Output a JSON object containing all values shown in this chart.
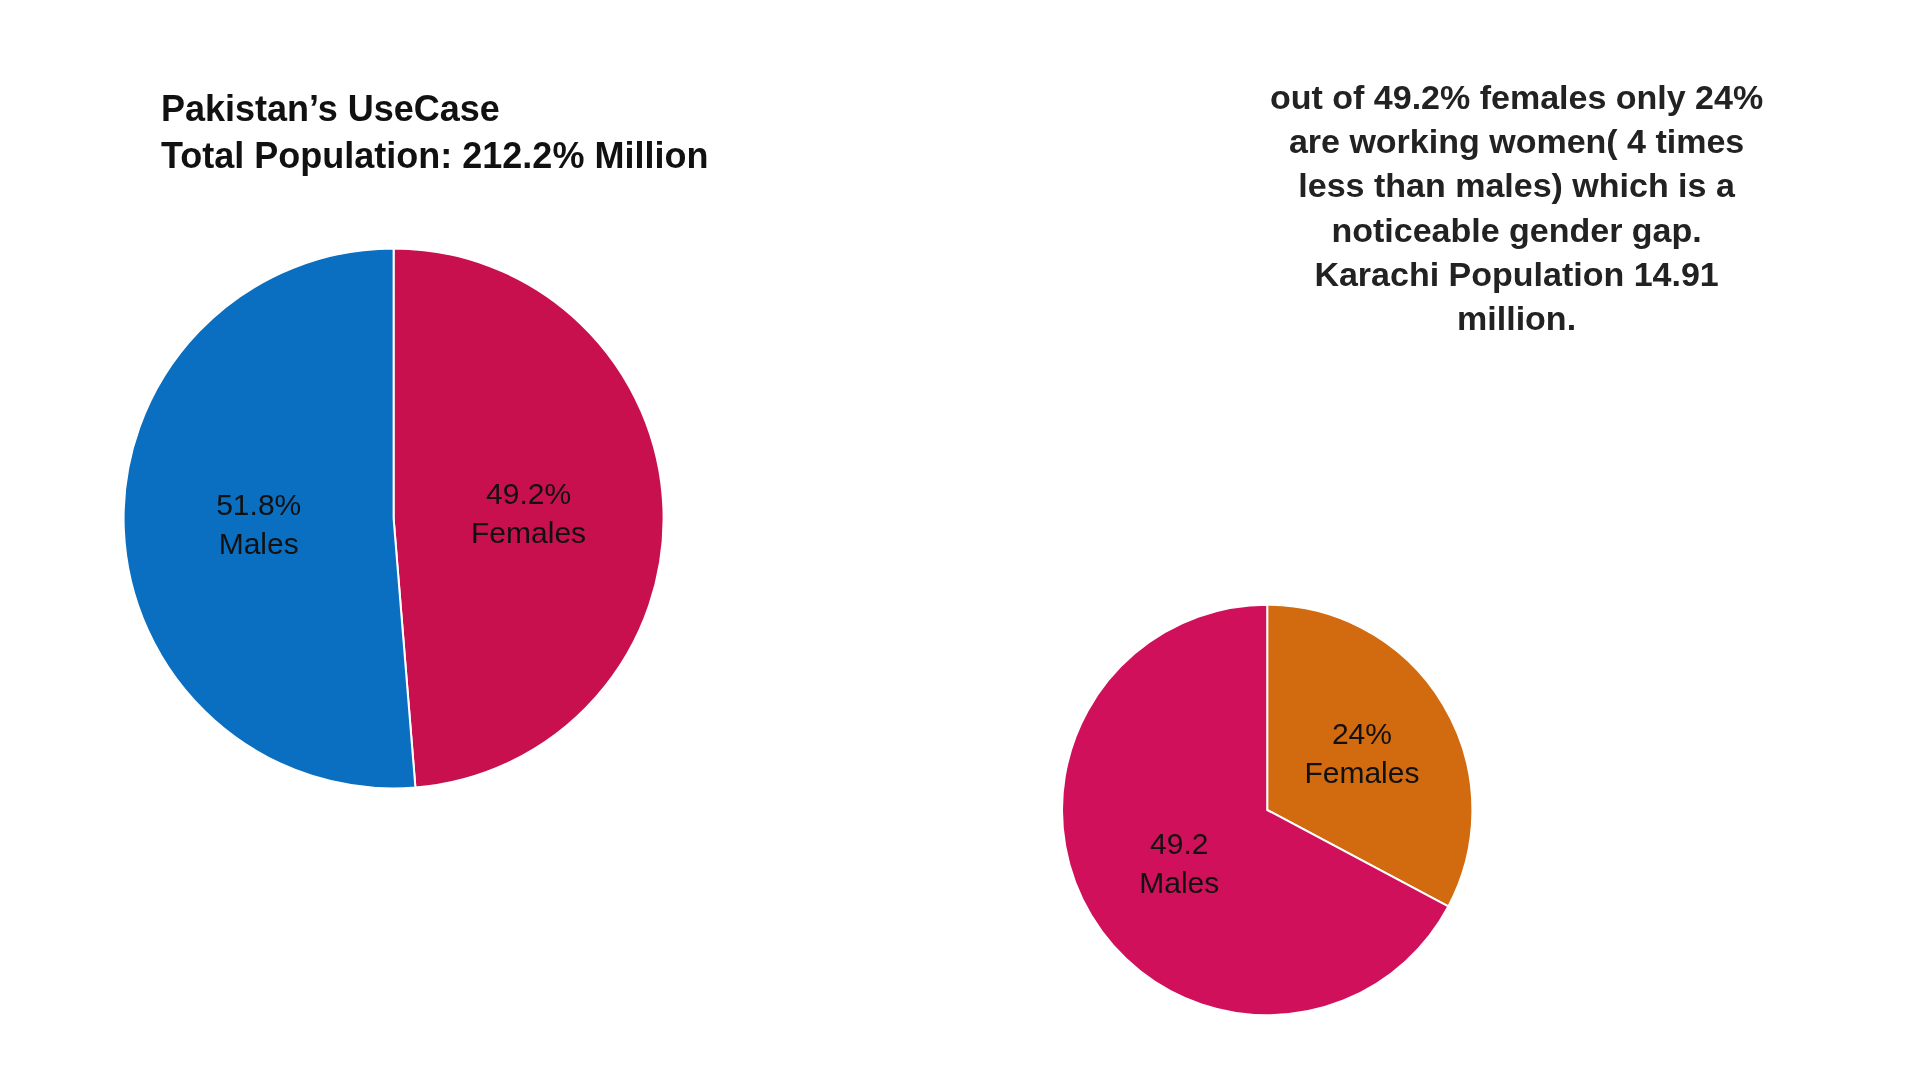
{
  "chart_data": [
    {
      "type": "pie",
      "title": "Pakistan’s UseCase\nTotal Population: 212.2% Million",
      "categories": [
        "Females",
        "Males"
      ],
      "values": [
        49.2,
        51.8
      ],
      "colors": [
        "#c8104f",
        "#0a6fc0"
      ],
      "value_labels": [
        "49.2%",
        "51.8%"
      ]
    },
    {
      "type": "pie",
      "categories": [
        "Females",
        "Males"
      ],
      "values": [
        24,
        49.2
      ],
      "colors": [
        "#d26a10",
        "#d0105a"
      ],
      "value_labels": [
        "24%",
        "49.2"
      ],
      "annotations": [
        "out of 49.2% females only 24% are working women( 4 times less than males) which is a noticeable gender gap. Karachi Population 14.91 million."
      ]
    }
  ]
}
